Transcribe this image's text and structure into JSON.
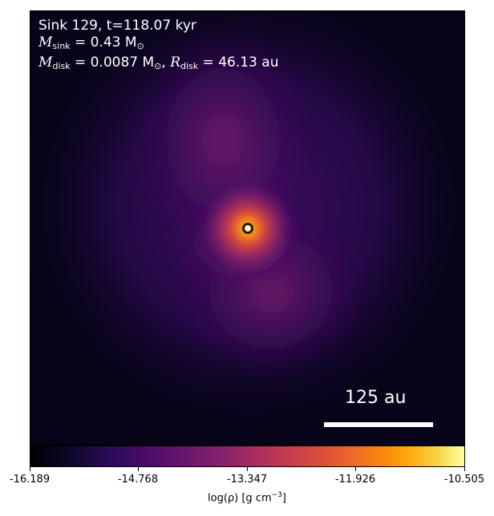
{
  "annotation": {
    "line1": "Sink 129, t=118.07 kyr",
    "m_sink_symbol": "M",
    "m_sink_sub": "sink",
    "m_sink_value": " = 0.43 M",
    "m_sink_unit": "⊙",
    "m_disk_symbol": "M",
    "m_disk_sub": "disk",
    "m_disk_value": " = 0.0087 M",
    "m_disk_unit": "⊙",
    "r_disk_sep": ", ",
    "r_disk_symbol": "R",
    "r_disk_sub": "disk",
    "r_disk_value": " = 46.13 au"
  },
  "scale_bar": {
    "label": "125 au"
  },
  "colorbar": {
    "colormap": "inferno",
    "ticks": [
      "-16.189",
      "-14.768",
      "-13.347",
      "-11.926",
      "-10.505"
    ],
    "label_main": "log(ρ) [g cm",
    "label_exp": "−3",
    "label_end": "]"
  },
  "colors": {
    "background": "#05030f",
    "sink_ring": "#ffffff",
    "text_overlay": "#ffffff"
  }
}
